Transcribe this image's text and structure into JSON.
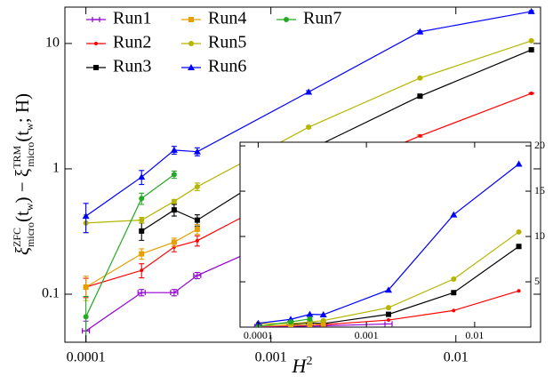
{
  "chart_data": [
    {
      "type": "line",
      "xscale": "log",
      "yscale": "log",
      "xlabel": [
        "H",
        "2"
      ],
      "ylabel": [
        "ξ",
        "ZFC",
        "micro",
        "(t",
        "w",
        ") − ξ",
        "TRM",
        "micro",
        "(t",
        "w",
        "; H)"
      ],
      "xlim": [
        7.7e-05,
        0.0287
      ],
      "ylim": [
        0.0414,
        19.5
      ],
      "xticks": [
        0.0001,
        0.001,
        0.01
      ],
      "yticks": [
        0.1,
        1,
        10
      ],
      "legend": "upper left",
      "series": [
        {
          "name": "Run1",
          "color": "#9400d3",
          "marker": "tick",
          "x": [
            0.0001,
            0.0002,
            0.0003,
            0.0004,
            0.0016
          ],
          "values": [
            0.051,
            0.103,
            0.103,
            0.141,
            0.35
          ],
          "errors": [
            0.01,
            0.006,
            0.006,
            0.008,
            0.006
          ]
        },
        {
          "name": "Run2",
          "color": "#ff0000",
          "marker": "dot",
          "x": [
            0.0001,
            0.0002,
            0.0003,
            0.0004,
            0.0016,
            0.0064,
            0.0256
          ],
          "values": [
            0.114,
            0.155,
            0.238,
            0.267,
            0.78,
            1.83,
            4.0
          ],
          "errors": [
            0.02,
            0.02,
            0.02,
            0.025,
            0.03,
            0.03,
            0.04
          ]
        },
        {
          "name": "Run3",
          "color": "#000000",
          "marker": "square",
          "x": [
            0.0002,
            0.0003,
            0.0004,
            0.0016,
            0.0064,
            0.0256
          ],
          "values": [
            0.319,
            0.47,
            0.39,
            1.41,
            3.8,
            8.9
          ],
          "errors": [
            0.05,
            0.05,
            0.04,
            0.04,
            0.05,
            0.08
          ]
        },
        {
          "name": "Run4",
          "color": "#e69f00",
          "marker": "square",
          "x": [
            0.0001,
            0.0002,
            0.0003,
            0.0004
          ],
          "values": [
            0.114,
            0.21,
            0.26,
            0.33
          ],
          "errors": [
            0.025,
            0.02,
            0.02,
            0.03
          ]
        },
        {
          "name": "Run5",
          "color": "#b5b500",
          "marker": "circle",
          "x": [
            0.0001,
            0.0002,
            0.0003,
            0.0004,
            0.0016,
            0.0064,
            0.0256
          ],
          "values": [
            0.37,
            0.39,
            0.55,
            0.72,
            2.15,
            5.3,
            10.5
          ],
          "errors": [
            0.06,
            0.02,
            0.02,
            0.05,
            0.05,
            0.06,
            0.1
          ]
        },
        {
          "name": "Run6",
          "color": "#0000ff",
          "marker": "triangle",
          "x": [
            0.0001,
            0.0002,
            0.0003,
            0.0004,
            0.0016,
            0.0064,
            0.0256
          ],
          "values": [
            0.42,
            0.86,
            1.41,
            1.37,
            4.1,
            12.4,
            18.0
          ],
          "errors": [
            0.11,
            0.11,
            0.1,
            0.1,
            0.1,
            0.2,
            0.3
          ]
        },
        {
          "name": "Run7",
          "color": "#22aa22",
          "marker": "circle",
          "x": [
            0.0001,
            0.0002,
            0.0003
          ],
          "values": [
            0.066,
            0.58,
            0.9
          ],
          "errors": [
            0.03,
            0.06,
            0.06
          ]
        }
      ]
    },
    {
      "type": "line",
      "xscale": "log",
      "xlim": [
        6.8e-05,
        0.033
      ],
      "ylim": [
        0,
        20.4
      ],
      "xticks": [
        0.0001,
        0.001,
        0.01
      ],
      "yticks": [
        5,
        10,
        15,
        20
      ]
    }
  ]
}
